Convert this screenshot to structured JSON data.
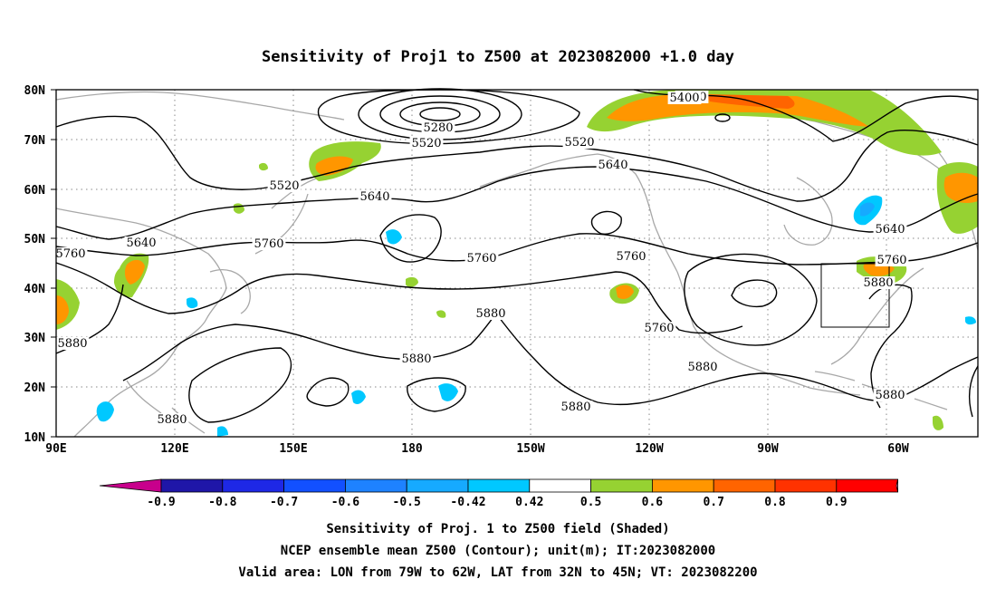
{
  "title": "Sensitivity of Proj1 to Z500 at 2023082000 +1.0 day",
  "map": {
    "lat_ticks": [
      "80N",
      "70N",
      "60N",
      "50N",
      "40N",
      "30N",
      "20N",
      "10N"
    ],
    "lon_ticks": [
      "90E",
      "120E",
      "150E",
      "180",
      "150W",
      "120W",
      "90W",
      "60W"
    ]
  },
  "contour_labels": [
    {
      "text": "5400",
      "lon": 165
    },
    {
      "text": "5280",
      "lon": 185
    },
    {
      "text": "5400",
      "lon": 257
    },
    {
      "text": "5520",
      "lon": 165
    },
    {
      "text": "5520",
      "lon": 230
    },
    {
      "text": "5520",
      "lon": 271
    },
    {
      "text": "5640",
      "lon": 215
    },
    {
      "text": "5640",
      "lon": 156
    },
    {
      "text": "5640",
      "lon": 105
    },
    {
      "text": "5640",
      "lon": 295
    },
    {
      "text": "5760",
      "lon": 135
    },
    {
      "text": "5760",
      "lon": 190
    },
    {
      "text": "5760",
      "lon": 241
    },
    {
      "text": "5760",
      "lon": 80
    },
    {
      "text": "5760",
      "lon": 295
    },
    {
      "text": "5760",
      "lon": 246
    },
    {
      "text": "5880",
      "lon": 202
    },
    {
      "text": "5880",
      "lon": 179
    },
    {
      "text": "5880",
      "lon": 83
    },
    {
      "text": "5880",
      "lon": 113
    },
    {
      "text": "5880",
      "lon": 263
    },
    {
      "text": "5880",
      "lon": 217
    },
    {
      "text": "5880",
      "lon": 293
    },
    {
      "text": "5880",
      "lon": 297
    }
  ],
  "colorbar": {
    "labels": [
      "-0.9",
      "-0.8",
      "-0.7",
      "-0.6",
      "-0.5",
      "-0.42",
      "0.42",
      "0.5",
      "0.6",
      "0.7",
      "0.8",
      "0.9"
    ],
    "colors": [
      "#c8008c",
      "#1f16a8",
      "#1e28e6",
      "#1250ff",
      "#1e82ff",
      "#16aaff",
      "#00c8ff",
      "#ffffff",
      "#96d232",
      "#ff9600",
      "#ff6400",
      "#ff3200",
      "#ff0000",
      "#ff96c8"
    ]
  },
  "captions": {
    "line1": "Sensitivity of Proj. 1 to Z500 field (Shaded)",
    "line2": "NCEP ensemble mean Z500 (Contour); unit(m); IT:2023082000",
    "line3": "Valid area: LON from 79W to 62W, LAT from 32N to 45N; VT: 2023082200"
  }
}
